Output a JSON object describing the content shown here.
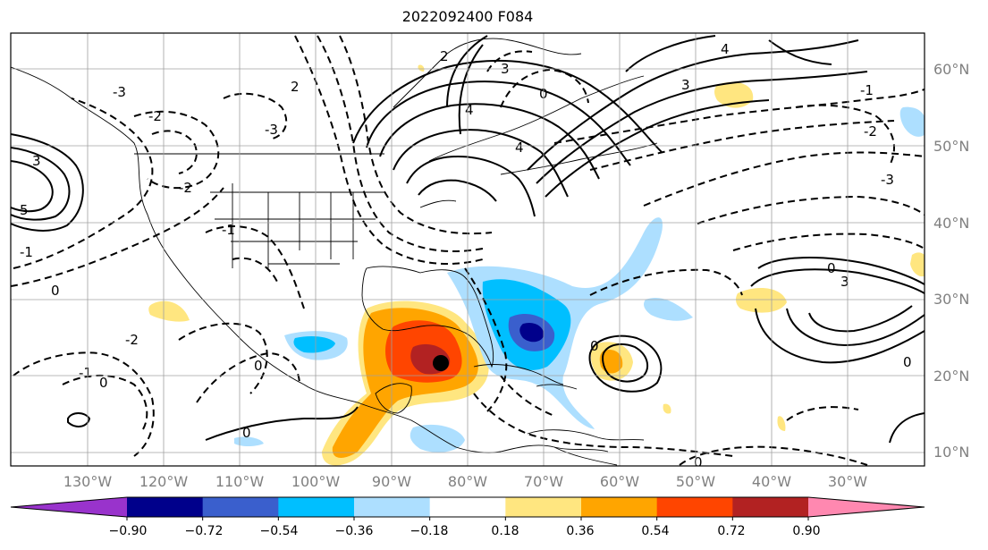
{
  "title": "2022092400 F084",
  "lat_labels": [
    "60°N",
    "50°N",
    "40°N",
    "30°N",
    "20°N",
    "10°N"
  ],
  "lon_labels": [
    "130°W",
    "120°W",
    "110°W",
    "100°W",
    "90°W",
    "80°W",
    "70°W",
    "60°W",
    "50°W",
    "40°W",
    "30°W"
  ],
  "colorbar": {
    "ticks": [
      "−0.90",
      "−0.72",
      "−0.54",
      "−0.36",
      "−0.18",
      "0.18",
      "0.36",
      "0.54",
      "0.72",
      "0.90"
    ],
    "colors": [
      "#9933cc",
      "#00008b",
      "#3a5fcd",
      "#00bfff",
      "#addfff",
      "#ffffff",
      "#ffe680",
      "#ffa500",
      "#ff4500",
      "#b22222",
      "#ff88b0"
    ]
  },
  "contour_labels": [
    "-1",
    "-2",
    "-3",
    "0",
    "1",
    "2",
    "3",
    "4",
    "5"
  ],
  "storm_marker": "tropical-cyclone-center"
}
